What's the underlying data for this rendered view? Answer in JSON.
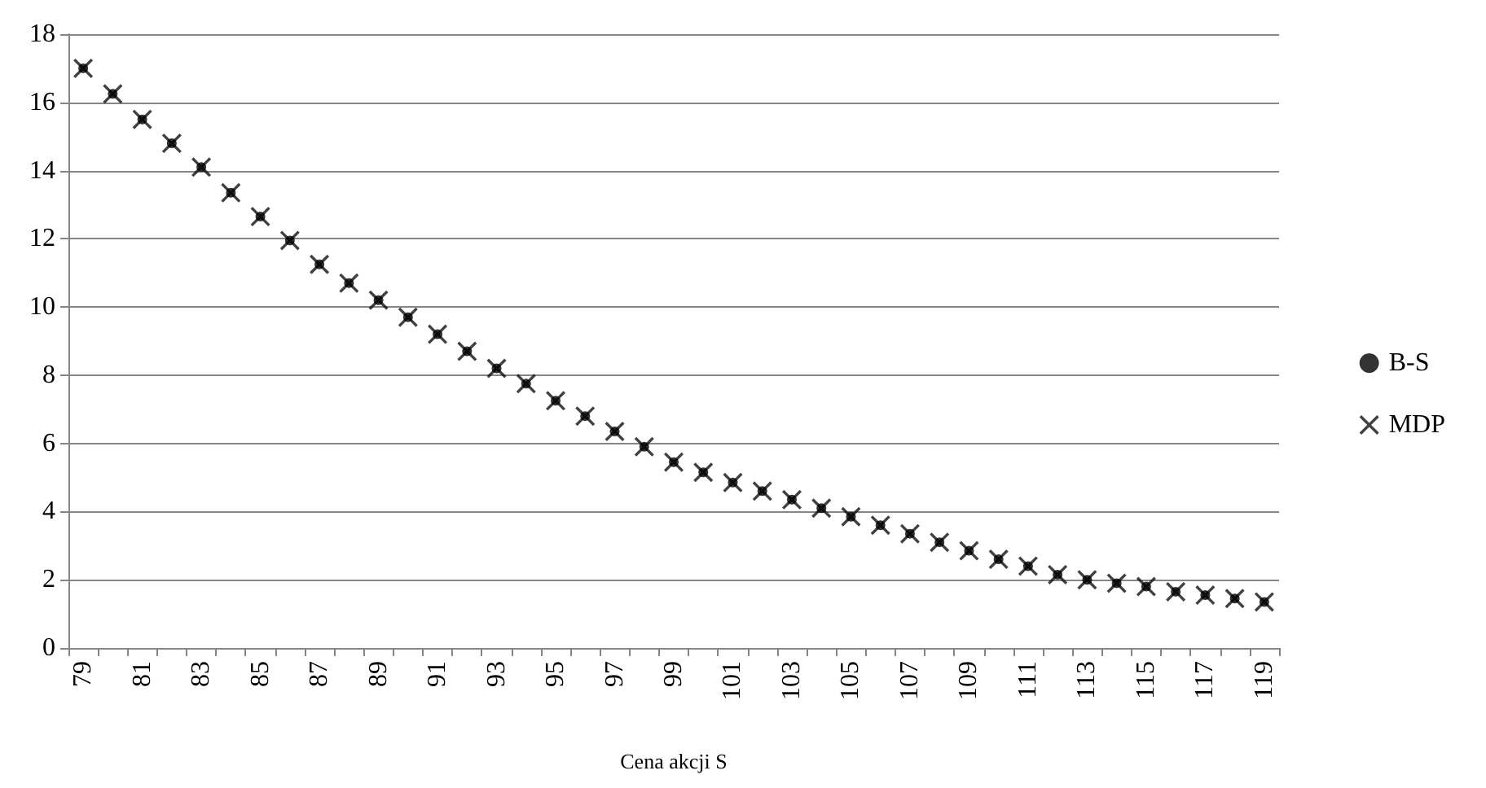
{
  "chart_data": {
    "type": "scatter",
    "xlabel": "Cena akcji S",
    "categories": [
      "79",
      null,
      "81",
      null,
      "83",
      null,
      "85",
      null,
      "87",
      null,
      "89",
      null,
      "91",
      null,
      "93",
      null,
      "95",
      null,
      "97",
      null,
      "99",
      null,
      "101",
      null,
      "103",
      null,
      "105",
      null,
      "107",
      null,
      "109",
      null,
      "111",
      null,
      "113",
      null,
      "115",
      null,
      "117",
      null,
      "119"
    ],
    "series": [
      {
        "name": "B-S",
        "color": "#000000",
        "marker": "circle",
        "values": [
          17.0,
          16.25,
          15.5,
          14.8,
          14.1,
          13.35,
          12.65,
          11.95,
          11.25,
          10.7,
          10.2,
          9.7,
          9.2,
          8.7,
          8.2,
          7.75,
          7.25,
          6.8,
          6.35,
          5.9,
          5.45,
          5.15,
          4.85,
          4.6,
          4.35,
          4.1,
          3.85,
          3.6,
          3.35,
          3.1,
          2.85,
          2.6,
          2.4,
          2.15,
          2.0,
          1.9,
          1.8,
          1.65,
          1.55,
          1.45,
          1.35
        ]
      },
      {
        "name": "MDP",
        "color": "#111111",
        "marker": "cross",
        "values": [
          17.0,
          16.25,
          15.5,
          14.8,
          14.1,
          13.35,
          12.65,
          11.95,
          11.25,
          10.7,
          10.2,
          9.7,
          9.2,
          8.7,
          8.2,
          7.75,
          7.25,
          6.8,
          6.35,
          5.9,
          5.45,
          5.15,
          4.85,
          4.6,
          4.35,
          4.1,
          3.85,
          3.6,
          3.35,
          3.1,
          2.85,
          2.6,
          2.4,
          2.15,
          2.0,
          1.9,
          1.8,
          1.65,
          1.55,
          1.45,
          1.35
        ]
      }
    ],
    "ylim": [
      0,
      18
    ],
    "yticks": [
      0,
      2,
      4,
      6,
      8,
      10,
      12,
      14,
      16,
      18
    ],
    "grid": "y",
    "legend": "right"
  }
}
